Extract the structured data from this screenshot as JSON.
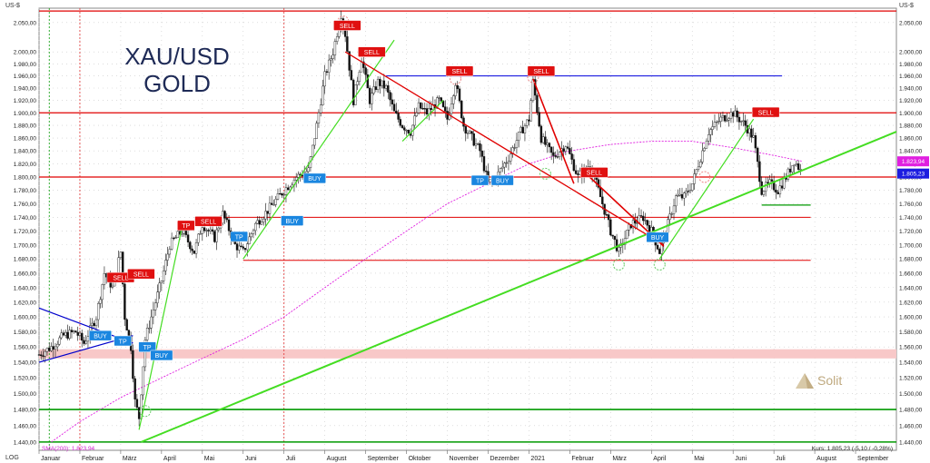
{
  "chart_data": {
    "type": "candlestick",
    "title": "XAU/USD",
    "subtitle": "GOLD",
    "currency_label": "US-$",
    "log_label": "LOG",
    "brand": "Solit",
    "sma_label": "SMA(200): 1.823,94",
    "status_text": "Kurs: 1.805,23 (-5,10 / -0,28%)",
    "price_badges": [
      {
        "value": 1823.94,
        "label": "1.823,94",
        "color": "#e020e0"
      },
      {
        "value": 1805.23,
        "label": "1.805,23",
        "color": "#1c1ce0"
      }
    ],
    "ylim": [
      1430,
      2075
    ],
    "y_ticks": [
      {
        "value": 2050,
        "label": "2.050,00"
      },
      {
        "value": 2000,
        "label": "2.000,00"
      },
      {
        "value": 1980,
        "label": "1.980,00"
      },
      {
        "value": 1960,
        "label": "1.960,00"
      },
      {
        "value": 1940,
        "label": "1.940,00"
      },
      {
        "value": 1920,
        "label": "1.920,00"
      },
      {
        "value": 1900,
        "label": "1.900,00"
      },
      {
        "value": 1880,
        "label": "1.880,00"
      },
      {
        "value": 1860,
        "label": "1.860,00"
      },
      {
        "value": 1840,
        "label": "1.840,00"
      },
      {
        "value": 1820,
        "label": "1.820,00"
      },
      {
        "value": 1800,
        "label": "1.800,00"
      },
      {
        "value": 1780,
        "label": "1.780,00"
      },
      {
        "value": 1760,
        "label": "1.760,00"
      },
      {
        "value": 1740,
        "label": "1.740,00"
      },
      {
        "value": 1720,
        "label": "1.720,00"
      },
      {
        "value": 1700,
        "label": "1.700,00"
      },
      {
        "value": 1680,
        "label": "1.680,00"
      },
      {
        "value": 1660,
        "label": "1.660,00"
      },
      {
        "value": 1640,
        "label": "1.640,00"
      },
      {
        "value": 1620,
        "label": "1.620,00"
      },
      {
        "value": 1600,
        "label": "1.600,00"
      },
      {
        "value": 1580,
        "label": "1.580,00"
      },
      {
        "value": 1560,
        "label": "1.560,00"
      },
      {
        "value": 1540,
        "label": "1.540,00"
      },
      {
        "value": 1520,
        "label": "1.520,00"
      },
      {
        "value": 1500,
        "label": "1.500,00"
      },
      {
        "value": 1480,
        "label": "1.480,00"
      },
      {
        "value": 1460,
        "label": "1.460,00"
      },
      {
        "value": 1440,
        "label": "1.440,00"
      }
    ],
    "x_ticks": [
      {
        "m": 0,
        "label": "Januar"
      },
      {
        "m": 1,
        "label": "Februar"
      },
      {
        "m": 2,
        "label": "März"
      },
      {
        "m": 3,
        "label": "April"
      },
      {
        "m": 4,
        "label": "Mai"
      },
      {
        "m": 5,
        "label": "Juni"
      },
      {
        "m": 6,
        "label": "Juli"
      },
      {
        "m": 7,
        "label": "August"
      },
      {
        "m": 8,
        "label": "September"
      },
      {
        "m": 9,
        "label": "Oktober"
      },
      {
        "m": 10,
        "label": "November"
      },
      {
        "m": 11,
        "label": "Dezember"
      },
      {
        "m": 12,
        "label": "2021"
      },
      {
        "m": 13,
        "label": "Februar"
      },
      {
        "m": 14,
        "label": "März"
      },
      {
        "m": 15,
        "label": "April"
      },
      {
        "m": 16,
        "label": "Mai"
      },
      {
        "m": 17,
        "label": "Juni"
      },
      {
        "m": 18,
        "label": "Juli"
      },
      {
        "m": 19,
        "label": "August"
      },
      {
        "m": 20,
        "label": "September"
      }
    ],
    "xlim": [
      0,
      21
    ],
    "price_path": [
      [
        0,
        1550
      ],
      [
        0.3,
        1560
      ],
      [
        0.6,
        1575
      ],
      [
        0.9,
        1580
      ],
      [
        1.1,
        1565
      ],
      [
        1.4,
        1600
      ],
      [
        1.6,
        1660
      ],
      [
        1.8,
        1640
      ],
      [
        2.0,
        1690
      ],
      [
        2.1,
        1600
      ],
      [
        2.25,
        1560
      ],
      [
        2.35,
        1490
      ],
      [
        2.45,
        1470
      ],
      [
        2.6,
        1570
      ],
      [
        2.8,
        1610
      ],
      [
        3.0,
        1650
      ],
      [
        3.2,
        1700
      ],
      [
        3.5,
        1720
      ],
      [
        3.8,
        1690
      ],
      [
        4.0,
        1730
      ],
      [
        4.3,
        1710
      ],
      [
        4.5,
        1745
      ],
      [
        4.8,
        1700
      ],
      [
        5.0,
        1690
      ],
      [
        5.3,
        1730
      ],
      [
        5.6,
        1750
      ],
      [
        6.0,
        1780
      ],
      [
        6.3,
        1800
      ],
      [
        6.6,
        1810
      ],
      [
        6.8,
        1880
      ],
      [
        7.0,
        1960
      ],
      [
        7.2,
        2000
      ],
      [
        7.4,
        2065
      ],
      [
        7.5,
        2030
      ],
      [
        7.7,
        1920
      ],
      [
        7.9,
        1990
      ],
      [
        8.1,
        1920
      ],
      [
        8.3,
        1950
      ],
      [
        8.5,
        1940
      ],
      [
        8.7,
        1900
      ],
      [
        8.9,
        1880
      ],
      [
        9.1,
        1870
      ],
      [
        9.3,
        1910
      ],
      [
        9.5,
        1900
      ],
      [
        9.8,
        1920
      ],
      [
        10.0,
        1890
      ],
      [
        10.2,
        1950
      ],
      [
        10.4,
        1880
      ],
      [
        10.6,
        1860
      ],
      [
        10.8,
        1840
      ],
      [
        11.0,
        1790
      ],
      [
        11.2,
        1800
      ],
      [
        11.5,
        1830
      ],
      [
        11.8,
        1870
      ],
      [
        12.0,
        1890
      ],
      [
        12.1,
        1950
      ],
      [
        12.3,
        1860
      ],
      [
        12.6,
        1830
      ],
      [
        12.9,
        1850
      ],
      [
        13.2,
        1800
      ],
      [
        13.5,
        1820
      ],
      [
        13.7,
        1780
      ],
      [
        14.0,
        1720
      ],
      [
        14.2,
        1690
      ],
      [
        14.5,
        1730
      ],
      [
        14.8,
        1740
      ],
      [
        15.0,
        1720
      ],
      [
        15.2,
        1690
      ],
      [
        15.4,
        1730
      ],
      [
        15.6,
        1770
      ],
      [
        15.8,
        1770
      ],
      [
        16.0,
        1790
      ],
      [
        16.2,
        1830
      ],
      [
        16.4,
        1870
      ],
      [
        16.7,
        1890
      ],
      [
        17.0,
        1900
      ],
      [
        17.3,
        1880
      ],
      [
        17.5,
        1860
      ],
      [
        17.7,
        1780
      ],
      [
        17.9,
        1790
      ],
      [
        18.1,
        1780
      ],
      [
        18.3,
        1800
      ],
      [
        18.5,
        1825
      ],
      [
        18.7,
        1805
      ]
    ],
    "sma_path": [
      [
        0.3,
        1440
      ],
      [
        1.0,
        1465
      ],
      [
        2.0,
        1495
      ],
      [
        3.0,
        1520
      ],
      [
        4.0,
        1545
      ],
      [
        5.0,
        1570
      ],
      [
        6.0,
        1600
      ],
      [
        7.0,
        1640
      ],
      [
        8.0,
        1680
      ],
      [
        9.0,
        1720
      ],
      [
        10.0,
        1760
      ],
      [
        11.0,
        1790
      ],
      [
        12.0,
        1820
      ],
      [
        13.0,
        1840
      ],
      [
        14.0,
        1850
      ],
      [
        15.0,
        1855
      ],
      [
        16.0,
        1855
      ],
      [
        17.0,
        1845
      ],
      [
        18.0,
        1833
      ],
      [
        18.7,
        1824
      ]
    ],
    "horizontal_lines": [
      {
        "value": 2070,
        "color": "#e00000",
        "width": 1.2
      },
      {
        "value": 1900,
        "color": "#e00000",
        "width": 1.2
      },
      {
        "value": 1800,
        "color": "#e00000",
        "width": 1.2
      },
      {
        "value": 1960,
        "color": "#0000dd",
        "width": 1.0,
        "from": 8.5,
        "to": 18.2
      },
      {
        "value": 1740,
        "color": "#e00000",
        "width": 1.0,
        "from": 4.5,
        "to": 18.9
      },
      {
        "value": 1678,
        "color": "#e00000",
        "width": 1.0,
        "from": 5.0,
        "to": 18.9
      },
      {
        "value": 1758,
        "color": "#009900",
        "width": 1.2,
        "from": 17.7,
        "to": 18.9
      },
      {
        "value": 1480,
        "color": "#009900",
        "width": 1.6
      },
      {
        "value": 1440,
        "color": "#009900",
        "width": 1.6
      }
    ],
    "bands": [
      {
        "from": 1545,
        "to": 1557,
        "color": "#f8c8c8"
      }
    ],
    "trend_lines": [
      {
        "from": [
          2.5,
          1440
        ],
        "to": [
          21,
          1870
        ],
        "color": "#44dd22",
        "width": 2
      },
      {
        "from": [
          2.45,
          1455
        ],
        "to": [
          3.5,
          1725
        ],
        "color": "#44dd22",
        "width": 1.2
      },
      {
        "from": [
          5.0,
          1680
        ],
        "to": [
          8.7,
          2020
        ],
        "color": "#44dd22",
        "width": 1.2
      },
      {
        "from": [
          8.9,
          1855
        ],
        "to": [
          9.9,
          1920
        ],
        "color": "#44dd22",
        "width": 1.2
      },
      {
        "from": [
          15.2,
          1680
        ],
        "to": [
          17.5,
          1890
        ],
        "color": "#44dd22",
        "width": 1.2
      },
      {
        "from": [
          0.0,
          1540
        ],
        "to": [
          2.3,
          1575
        ],
        "color": "#0000cc",
        "width": 1.2
      },
      {
        "from": [
          0.0,
          1612
        ],
        "to": [
          2.3,
          1565
        ],
        "color": "#0000cc",
        "width": 1.2
      },
      {
        "from": [
          7.5,
          2000
        ],
        "to": [
          15.3,
          1700
        ],
        "color": "#e00000",
        "width": 1.3
      },
      {
        "from": [
          12.1,
          1955
        ],
        "to": [
          13.1,
          1790
        ],
        "color": "#e00000",
        "width": 1.6
      },
      {
        "from": [
          13.4,
          1805
        ],
        "to": [
          15.3,
          1698
        ],
        "color": "#e00000",
        "width": 1.6
      }
    ],
    "vertical_lines": [
      {
        "m": 0.25,
        "color": "#009900"
      },
      {
        "m": 1.0,
        "color": "#e03030"
      },
      {
        "m": 6.0,
        "color": "#e03030"
      }
    ],
    "circles": [
      {
        "m": 7.45,
        "v": 2052,
        "color": "#ee8888"
      },
      {
        "m": 10.2,
        "v": 1955,
        "color": "#ee8888"
      },
      {
        "m": 12.1,
        "v": 1958,
        "color": "#ee8888"
      },
      {
        "m": 16.3,
        "v": 1800,
        "color": "#ee8888"
      },
      {
        "m": 12.4,
        "v": 1805,
        "color": "#66cc66"
      },
      {
        "m": 14.2,
        "v": 1672,
        "color": "#66cc66"
      },
      {
        "m": 15.2,
        "v": 1672,
        "color": "#66cc66"
      },
      {
        "m": 2.6,
        "v": 1478,
        "color": "#66cc66"
      }
    ],
    "signals": [
      {
        "label": "SELL",
        "kind": "sell",
        "m": 7.55,
        "v": 2045
      },
      {
        "label": "SELL",
        "kind": "sell",
        "m": 8.15,
        "v": 2000
      },
      {
        "label": "SELL",
        "kind": "sell",
        "m": 10.3,
        "v": 1968
      },
      {
        "label": "SELL",
        "kind": "sell",
        "m": 12.3,
        "v": 1968
      },
      {
        "label": "SELL",
        "kind": "sell",
        "m": 17.8,
        "v": 1901
      },
      {
        "label": "SELL",
        "kind": "sell",
        "m": 13.6,
        "v": 1807
      },
      {
        "label": "SELL",
        "kind": "sell",
        "m": 2.0,
        "v": 1654
      },
      {
        "label": "SELL",
        "kind": "sell",
        "m": 2.5,
        "v": 1659
      },
      {
        "label": "TP",
        "kind": "sell",
        "m": 3.6,
        "v": 1728
      },
      {
        "label": "SELL",
        "kind": "sell",
        "m": 4.15,
        "v": 1734
      },
      {
        "label": "BUY",
        "kind": "buy",
        "m": 6.75,
        "v": 1798
      },
      {
        "label": "BUY",
        "kind": "buy",
        "m": 6.2,
        "v": 1735
      },
      {
        "label": "TP",
        "kind": "buy",
        "m": 4.9,
        "v": 1712
      },
      {
        "label": "TP",
        "kind": "buy",
        "m": 10.8,
        "v": 1795
      },
      {
        "label": "BUY",
        "kind": "buy",
        "m": 11.35,
        "v": 1795
      },
      {
        "label": "BUY",
        "kind": "buy",
        "m": 15.15,
        "v": 1711
      },
      {
        "label": "BUY",
        "kind": "buy",
        "m": 1.5,
        "v": 1575
      },
      {
        "label": "TP",
        "kind": "buy",
        "m": 2.05,
        "v": 1568
      },
      {
        "label": "TP",
        "kind": "buy",
        "m": 2.65,
        "v": 1560
      },
      {
        "label": "BUY",
        "kind": "buy",
        "m": 3.0,
        "v": 1549
      }
    ]
  }
}
